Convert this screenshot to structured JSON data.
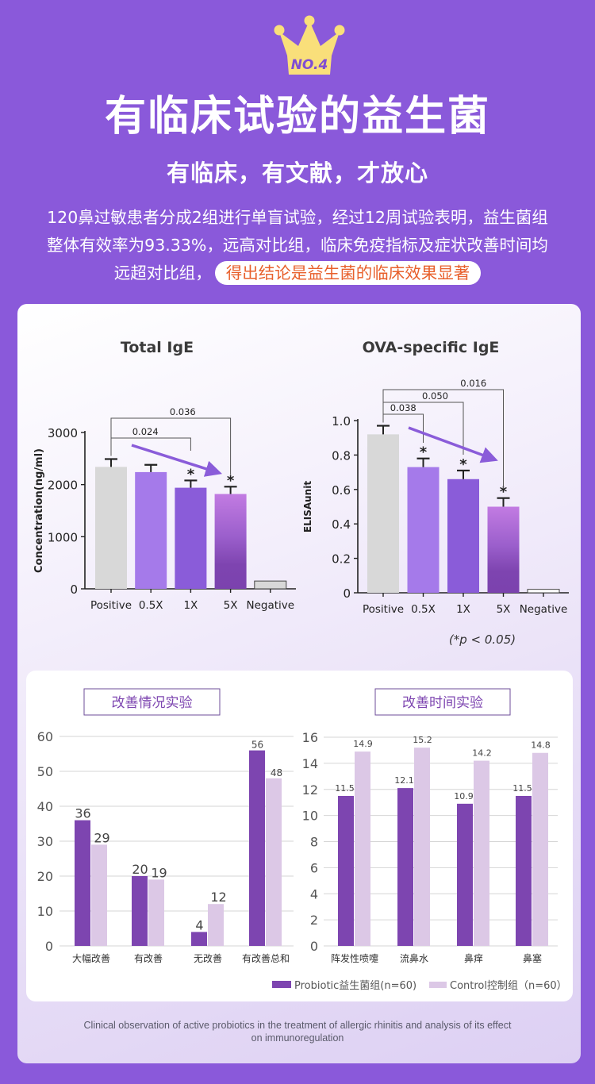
{
  "badge": {
    "label": "NO.4",
    "crown_color": "#F9DF7A",
    "text_color": "#7F4DD3"
  },
  "header": {
    "title": "有临床试验的益生菌",
    "subtitle": "有临床，有文献，才放心",
    "paragraph_lines": [
      "120鼻过敏患者分成2组进行单盲试验，经过12周试验表明，益生菌组",
      "整体有效率为93.33%，远高对比组，临床免疫指标及症状改善时间均",
      "远超对比组，"
    ],
    "highlight": "得出结论是益生菌的临床效果显著"
  },
  "colors": {
    "background": "#8A59DA",
    "highlight_text": "#E8602C",
    "probiotic": "#7D45B0",
    "control": "#DCC8E6"
  },
  "chart_data": [
    {
      "type": "bar",
      "title": "Total IgE",
      "ylabel": "Concentration(ng/ml)",
      "xlabel": "",
      "ylim": [
        0,
        3000
      ],
      "yticks": [
        "0",
        "1000",
        "2000",
        "3000"
      ],
      "categories": [
        "Positive",
        "0.5X",
        "1X",
        "5X",
        "Negative"
      ],
      "values": [
        2340,
        2240,
        1940,
        1820,
        150
      ],
      "errors": [
        150,
        140,
        140,
        140,
        0
      ],
      "bar_colors": [
        "#D8D8D8",
        "#A57AEA",
        "#8A5CD9",
        "gradient",
        "#D8D8D8"
      ],
      "significance": [
        "",
        "",
        "*",
        "*",
        ""
      ],
      "brackets": [
        {
          "from": "Positive",
          "to": "1X",
          "label": "0.024"
        },
        {
          "from": "Positive",
          "to": "5X",
          "label": "0.036"
        }
      ],
      "trend_arrow": {
        "from": "Positive",
        "to": "5X",
        "color": "#8A5CD9"
      }
    },
    {
      "type": "bar",
      "title": "OVA-specific IgE",
      "ylabel": "ELISAunit",
      "xlabel": "",
      "ylim": [
        0,
        1.0
      ],
      "yticks": [
        "0",
        "0.2",
        "0.4",
        "0.6",
        "0.8",
        "1.0"
      ],
      "categories": [
        "Positive",
        "0.5X",
        "1X",
        "5X",
        "Negative"
      ],
      "values": [
        0.92,
        0.73,
        0.66,
        0.5,
        0.02
      ],
      "errors": [
        0.05,
        0.05,
        0.05,
        0.05,
        0
      ],
      "bar_colors": [
        "#D8D8D8",
        "#A57AEA",
        "#8A5CD9",
        "gradient",
        "#FFFFFF"
      ],
      "significance": [
        "",
        "*",
        "*",
        "*",
        ""
      ],
      "brackets": [
        {
          "from": "Positive",
          "to": "0.5X",
          "label": "0.038"
        },
        {
          "from": "Positive",
          "to": "1X",
          "label": "0.050"
        },
        {
          "from": "Positive",
          "to": "5X",
          "label": "0.016"
        }
      ],
      "trend_arrow": {
        "from": "Positive",
        "to": "5X",
        "color": "#8A5CD9"
      },
      "note": "(*p < 0.05)"
    },
    {
      "type": "bar",
      "title": "改善情况实验",
      "xlabel": "",
      "ylabel": "",
      "ylim": [
        0,
        60
      ],
      "yticks": [
        "0",
        "10",
        "20",
        "30",
        "40",
        "50",
        "60"
      ],
      "grid": true,
      "categories": [
        "大幅改善",
        "有改善",
        "无改善",
        "有改善总和"
      ],
      "series": [
        {
          "name": "Probiotic益生菌组(n=60)",
          "values": [
            36,
            20,
            4,
            56
          ],
          "labels": [
            "36",
            "20",
            "4",
            "56"
          ]
        },
        {
          "name": "Control控制组（n=60）",
          "values": [
            29,
            19,
            12,
            48
          ],
          "labels": [
            "29",
            "19",
            "12",
            "48"
          ]
        }
      ]
    },
    {
      "type": "bar",
      "title": "改善时间实验",
      "xlabel": "",
      "ylabel": "",
      "ylim": [
        0,
        16
      ],
      "yticks": [
        "0",
        "2",
        "4",
        "6",
        "8",
        "10",
        "12",
        "14",
        "16"
      ],
      "grid": true,
      "categories": [
        "阵发性喷嚏",
        "流鼻水",
        "鼻痒",
        "鼻塞"
      ],
      "series": [
        {
          "name": "Probiotic益生菌组(n=60)",
          "values": [
            11.5,
            12.1,
            10.9,
            11.5
          ],
          "labels": [
            "11.5",
            "12.1",
            "10.9",
            "11.5"
          ]
        },
        {
          "name": "Control控制组（n=60）",
          "values": [
            14.9,
            15.2,
            14.2,
            14.8
          ],
          "labels": [
            "14.9",
            "15.2",
            "14.2",
            "14.8"
          ]
        }
      ]
    }
  ],
  "legend": {
    "probiotic": "Probiotic益生菌组(n=60)",
    "control": "Control控制组（n=60）"
  },
  "footer": {
    "line1": "Clinical observation of active probiotics in the treatment of allergic rhinitis and analysis of its effect",
    "line2": "on immunoregulation"
  }
}
